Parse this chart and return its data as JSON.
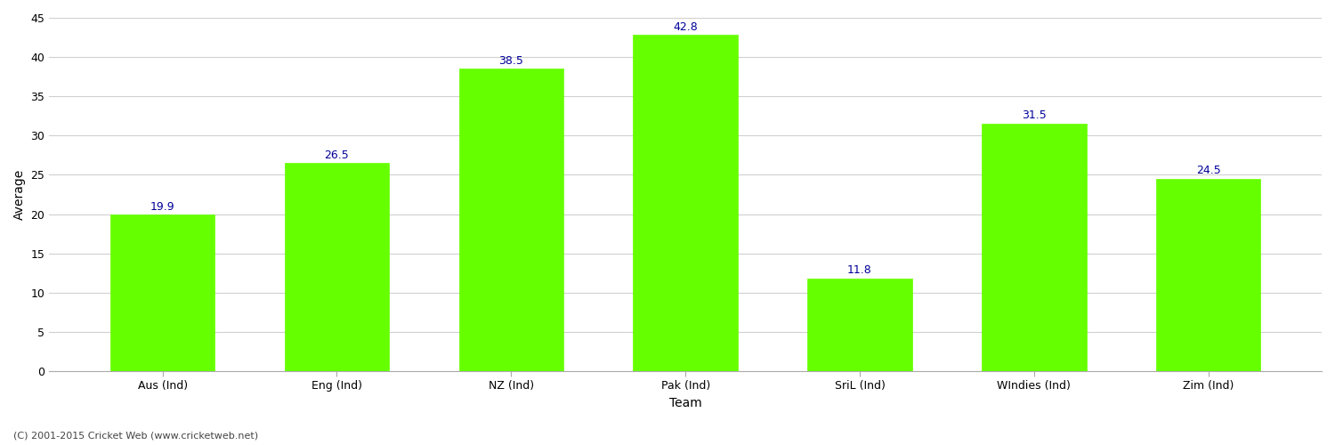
{
  "title": "",
  "categories": [
    "Aus (Ind)",
    "Eng (Ind)",
    "NZ (Ind)",
    "Pak (Ind)",
    "SriL (Ind)",
    "WIndies (Ind)",
    "Zim (Ind)"
  ],
  "values": [
    19.9,
    26.5,
    38.5,
    42.8,
    11.8,
    31.5,
    24.5
  ],
  "bar_color": "#66ff00",
  "bar_edge_color": "#66ff00",
  "label_color": "#000099",
  "xlabel": "Team",
  "ylabel": "Average",
  "ylim": [
    0,
    45
  ],
  "yticks": [
    0,
    5,
    10,
    15,
    20,
    25,
    30,
    35,
    40,
    45
  ],
  "grid_color": "#d0d0d0",
  "background_color": "#ffffff",
  "axis_fontsize": 10,
  "label_fontsize": 9,
  "tick_fontsize": 9,
  "footer_text": "(C) 2001-2015 Cricket Web (www.cricketweb.net)",
  "footer_fontsize": 8,
  "bar_width": 0.6
}
